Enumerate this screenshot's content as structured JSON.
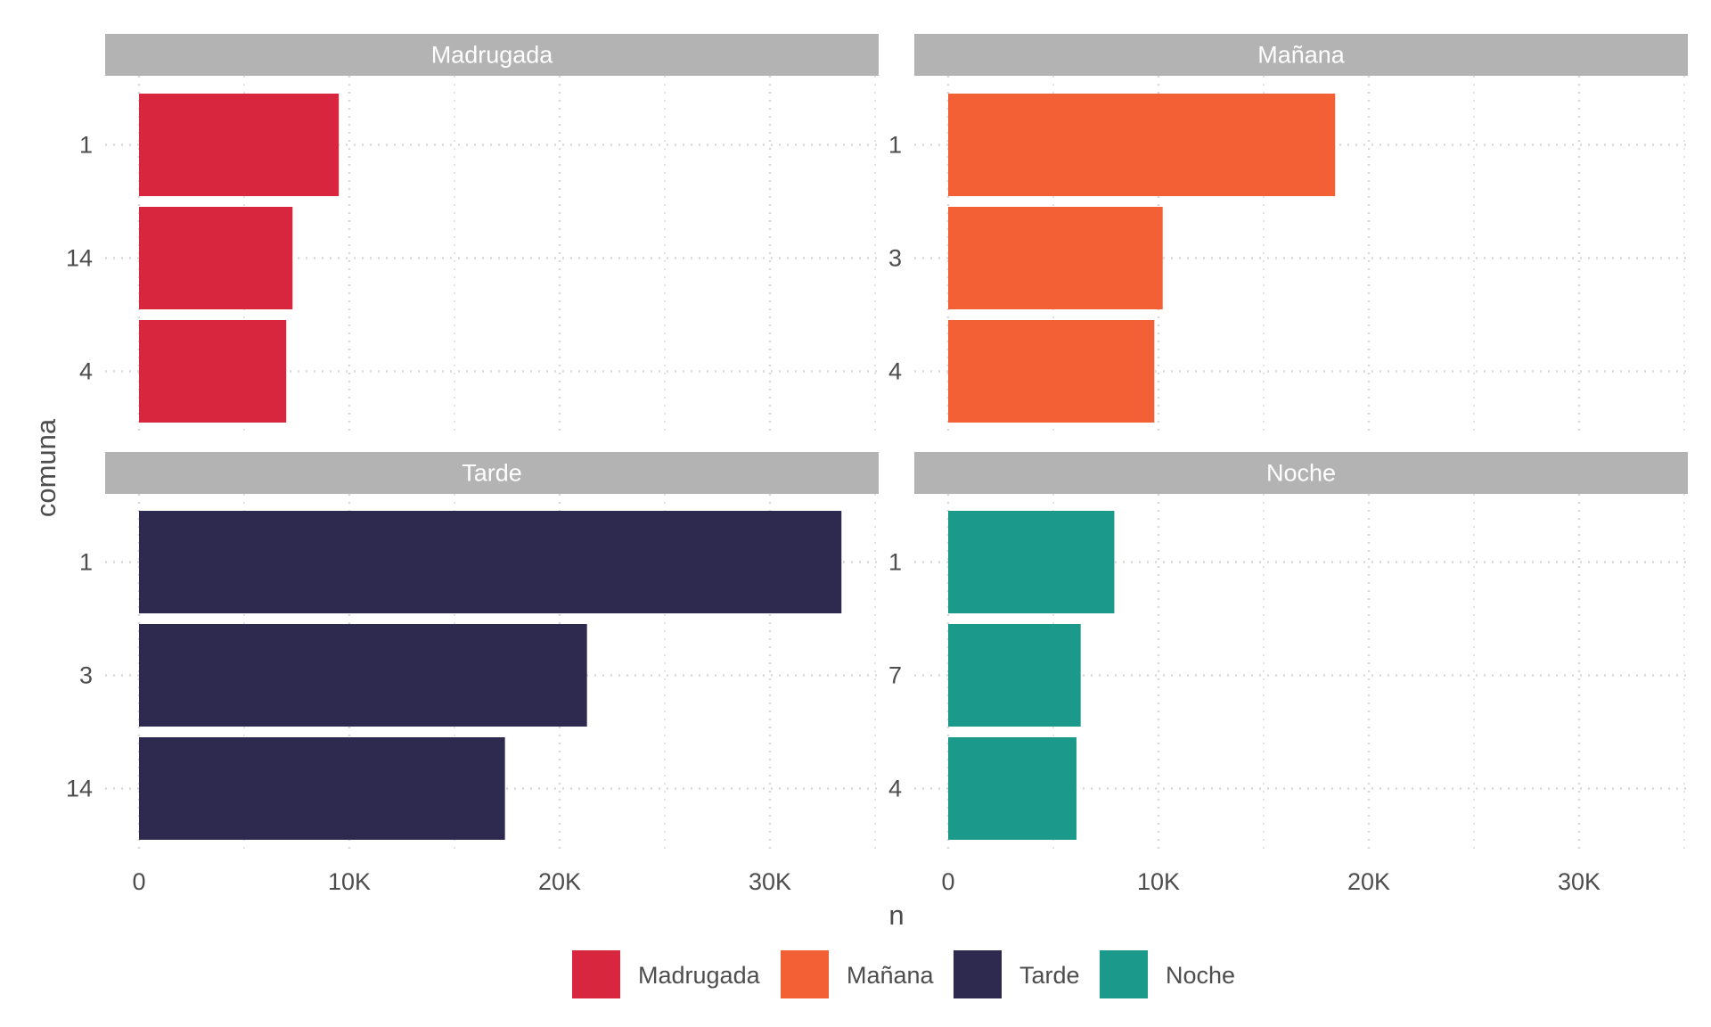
{
  "chart_data": {
    "type": "bar",
    "orientation": "horizontal",
    "faceted": true,
    "xlabel": "n",
    "ylabel": "comuna",
    "xlim": [
      0,
      35000
    ],
    "x_ticks": [
      0,
      10000,
      20000,
      30000
    ],
    "x_tick_labels": [
      "0",
      "10K",
      "20K",
      "30K"
    ],
    "grid": true,
    "legend_position": "bottom",
    "legend": [
      {
        "label": "Madrugada",
        "color": "#D7263D"
      },
      {
        "label": "Mañana",
        "color": "#F46036"
      },
      {
        "label": "Tarde",
        "color": "#2E294E"
      },
      {
        "label": "Noche",
        "color": "#1B998B"
      }
    ],
    "panels": [
      {
        "title": "Madrugada",
        "color": "#D7263D",
        "categories": [
          "1",
          "14",
          "4"
        ],
        "values": [
          9500,
          7300,
          7000
        ]
      },
      {
        "title": "Mañana",
        "color": "#F46036",
        "categories": [
          "1",
          "3",
          "4"
        ],
        "values": [
          18400,
          10200,
          9800
        ]
      },
      {
        "title": "Tarde",
        "color": "#2E294E",
        "categories": [
          "1",
          "3",
          "14"
        ],
        "values": [
          33400,
          21300,
          17400
        ]
      },
      {
        "title": "Noche",
        "color": "#1B998B",
        "categories": [
          "1",
          "7",
          "4"
        ],
        "values": [
          7900,
          6300,
          6100
        ]
      }
    ]
  }
}
